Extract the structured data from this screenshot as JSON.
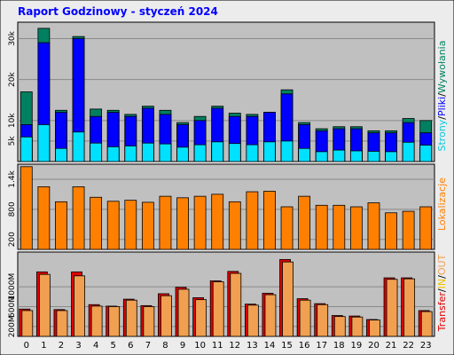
{
  "chart_data": {
    "type": "bar",
    "title": "Raport Godzinowy -  styczeń 2024",
    "categories": [
      "0",
      "1",
      "2",
      "3",
      "4",
      "5",
      "6",
      "7",
      "8",
      "9",
      "10",
      "11",
      "12",
      "13",
      "14",
      "15",
      "16",
      "17",
      "18",
      "19",
      "20",
      "21",
      "22",
      "23"
    ],
    "colors": {
      "background": "#ececec",
      "plot_bg": "#c0c0c0",
      "title": "#0000ff",
      "wywolania": "#008060",
      "pliki": "#0000ff",
      "strony": "#00e0ff",
      "lokalizacje": "#ff8000",
      "transfer": "#e00000",
      "in_out": "#f0a050",
      "in_label": "#f0c000"
    },
    "panels": [
      {
        "id": "requests",
        "ylim": [
          0,
          34000
        ],
        "yticks": [
          5000,
          10000,
          20000,
          30000
        ],
        "ytick_labels": [
          "5k",
          "10k",
          "20k",
          "30k"
        ],
        "side_label": {
          "strony": "Strony",
          "sep1": "/",
          "pliki": "Pliki",
          "sep2": "/",
          "wywolania": "Wywołania"
        },
        "series": [
          {
            "name": "Wywołania",
            "color": "#008060",
            "values": [
              17000,
              32500,
              12500,
              30500,
              12800,
              12500,
              11500,
              13500,
              12500,
              9500,
              11000,
              13500,
              11800,
              11500,
              12000,
              17500,
              9500,
              8000,
              8500,
              8500,
              7500,
              7500,
              10500,
              10000
            ]
          },
          {
            "name": "Pliki",
            "color": "#0000ff",
            "values": [
              9000,
              29000,
              12000,
              30000,
              11000,
              12000,
              11000,
              13000,
              11500,
              9000,
              10000,
              13000,
              11000,
              11000,
              12000,
              16500,
              9000,
              7500,
              8000,
              8000,
              7000,
              7000,
              9500,
              7000
            ]
          },
          {
            "name": "Strony",
            "color": "#00e0ff",
            "values": [
              6000,
              9000,
              3200,
              7200,
              4500,
              3600,
              3800,
              4500,
              4300,
              3500,
              4100,
              4800,
              4400,
              4100,
              4800,
              5000,
              3200,
              2400,
              2800,
              2600,
              2500,
              2400,
              4700,
              4000
            ]
          }
        ]
      },
      {
        "id": "visits",
        "ylim": [
          0,
          1700
        ],
        "yticks": [
          200,
          800,
          1400
        ],
        "ytick_labels": [
          "200",
          "800",
          "1.4k"
        ],
        "side_label": {
          "lokalizacje": "Lokalizacje"
        },
        "series": [
          {
            "name": "Lokalizacje",
            "color": "#ff8000",
            "values": [
              1650,
              1250,
              950,
              1250,
              1040,
              960,
              980,
              940,
              1060,
              1030,
              1060,
              1100,
              950,
              1150,
              1160,
              850,
              1060,
              880,
              880,
              850,
              930,
              730,
              760,
              850
            ]
          }
        ]
      },
      {
        "id": "transfer",
        "ylim": [
          0,
          1700
        ],
        "yticks": [
          200,
          600,
          1000
        ],
        "ytick_labels": [
          "200M",
          "600M",
          "1000M"
        ],
        "side_label": {
          "transfer": "Transfer",
          "sep1": "/",
          "in": "IN",
          "sep2": "/",
          "out": "OUT"
        },
        "series": [
          {
            "name": "Transfer",
            "color": "#e00000",
            "values": [
              550,
              1300,
              540,
              1300,
              640,
              610,
              750,
              620,
              860,
              990,
              780,
              1120,
              1310,
              650,
              870,
              1550,
              760,
              660,
              420,
              410,
              340,
              1180,
              1180,
              520
            ]
          },
          {
            "name": "OUT",
            "color": "#f0a050",
            "values": [
              520,
              1250,
              520,
              1220,
              610,
              600,
              730,
              600,
              820,
              950,
              740,
              1100,
              1270,
              630,
              840,
              1500,
              730,
              640,
              400,
              390,
              330,
              1150,
              1160,
              500
            ]
          }
        ]
      }
    ]
  }
}
